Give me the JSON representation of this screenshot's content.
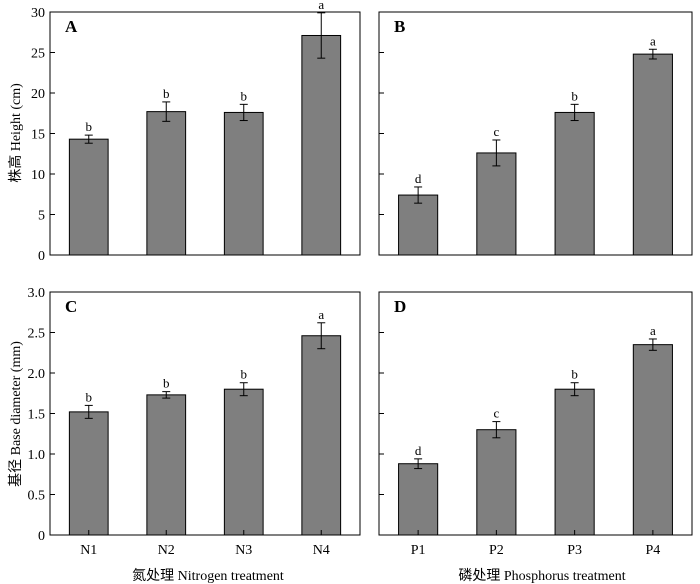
{
  "figure": {
    "ylabel_top": "株高 Height (cm)",
    "ylabel_bottom": "基径 Base diameter (mm)",
    "xlabel_left": "氮处理 Nitrogen treatment",
    "xlabel_right": "磷处理 Phosphorus treatment",
    "bar_color": "#7f7f7f"
  },
  "chart_data": [
    {
      "type": "bar",
      "panel": "A",
      "categories": [
        "N1",
        "N2",
        "N3",
        "N4"
      ],
      "values": [
        14.3,
        17.7,
        17.6,
        27.1
      ],
      "errors": [
        0.5,
        1.2,
        1.0,
        2.8
      ],
      "significance": [
        "b",
        "b",
        "b",
        "a"
      ],
      "ylabel": "株高 Height (cm)",
      "xlabel": "",
      "ylim": [
        0,
        30
      ],
      "yticks": [
        0,
        5,
        10,
        15,
        20,
        25,
        30
      ],
      "ytick_labels": [
        "0",
        "5",
        "10",
        "15",
        "20",
        "25",
        "30"
      ]
    },
    {
      "type": "bar",
      "panel": "B",
      "categories": [
        "P1",
        "P2",
        "P3",
        "P4"
      ],
      "values": [
        7.4,
        12.6,
        17.6,
        24.8
      ],
      "errors": [
        1.0,
        1.6,
        1.0,
        0.6
      ],
      "significance": [
        "d",
        "c",
        "b",
        "a"
      ],
      "ylabel": "",
      "xlabel": "",
      "ylim": [
        0,
        30
      ],
      "yticks": [
        0,
        5,
        10,
        15,
        20,
        25,
        30
      ],
      "ytick_labels": []
    },
    {
      "type": "bar",
      "panel": "C",
      "categories": [
        "N1",
        "N2",
        "N3",
        "N4"
      ],
      "values": [
        1.52,
        1.73,
        1.8,
        2.46
      ],
      "errors": [
        0.08,
        0.04,
        0.08,
        0.16
      ],
      "significance": [
        "b",
        "b",
        "b",
        "a"
      ],
      "ylabel": "基径 Base diameter (mm)",
      "xlabel": "氮处理 Nitrogen treatment",
      "ylim": [
        0,
        3.0
      ],
      "yticks": [
        0,
        0.5,
        1.0,
        1.5,
        2.0,
        2.5,
        3.0
      ],
      "ytick_labels": [
        "0",
        "0.5",
        "1.0",
        "1.5",
        "2.0",
        "2.5",
        "3.0"
      ]
    },
    {
      "type": "bar",
      "panel": "D",
      "categories": [
        "P1",
        "P2",
        "P3",
        "P4"
      ],
      "values": [
        0.88,
        1.3,
        1.8,
        2.35
      ],
      "errors": [
        0.06,
        0.1,
        0.08,
        0.07
      ],
      "significance": [
        "d",
        "c",
        "b",
        "a"
      ],
      "ylabel": "",
      "xlabel": "磷处理 Phosphorus treatment",
      "ylim": [
        0,
        3.0
      ],
      "yticks": [
        0,
        0.5,
        1.0,
        1.5,
        2.0,
        2.5,
        3.0
      ],
      "ytick_labels": []
    }
  ]
}
